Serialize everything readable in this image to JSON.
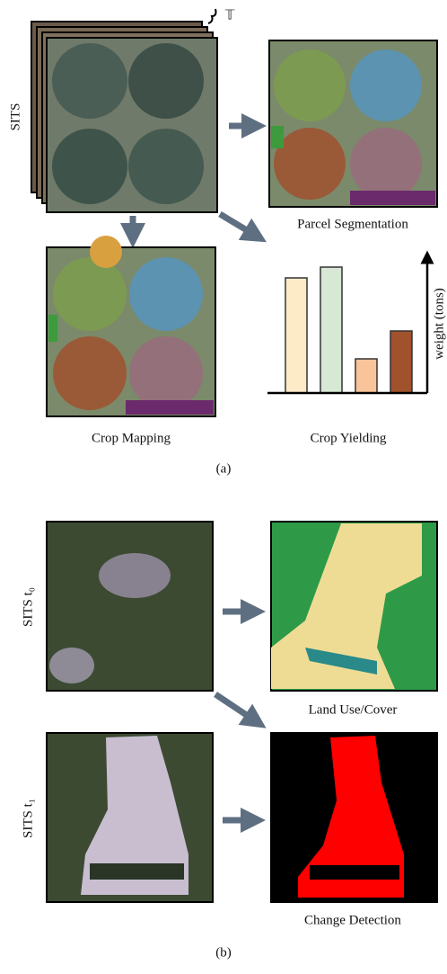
{
  "panel_a": {
    "stack_label": "SITS",
    "time_symbol": "𝕋",
    "segmentation_label": "Parcel Segmentation",
    "mapping_label": "Crop Mapping",
    "yielding": {
      "title": "Crop Yielding",
      "axis_label": "weight (tons)",
      "values": [
        128,
        140,
        38,
        69
      ],
      "colors": [
        "#fdebc8",
        "#d7e8d4",
        "#f9c49a",
        "#a0522d"
      ]
    },
    "caption": "(a)"
  },
  "panel_b": {
    "t0_label": "SITS t₀",
    "land_label": "Land Use/Cover",
    "t1_label": "SITS t₁",
    "change_label": "Change Detection",
    "caption": "(b)"
  }
}
